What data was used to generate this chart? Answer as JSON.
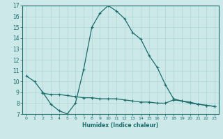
{
  "xlabel": "Humidex (Indice chaleur)",
  "ylabel": "",
  "background_color": "#cce8e8",
  "grid_color": "#aed4d4",
  "line_color": "#1a6b6b",
  "xlim": [
    -0.5,
    23.5
  ],
  "ylim": [
    7,
    17
  ],
  "xticks": [
    0,
    1,
    2,
    3,
    4,
    5,
    6,
    7,
    8,
    9,
    10,
    11,
    12,
    13,
    14,
    15,
    16,
    17,
    18,
    19,
    20,
    21,
    22,
    23
  ],
  "yticks": [
    7,
    8,
    9,
    10,
    11,
    12,
    13,
    14,
    15,
    16,
    17
  ],
  "series1_x": [
    0,
    1,
    2,
    3,
    4,
    5,
    6,
    7,
    8,
    9,
    10,
    11,
    12,
    13,
    14,
    15,
    16,
    17,
    18,
    19,
    20,
    21,
    22,
    23
  ],
  "series1_y": [
    10.5,
    10.0,
    9.0,
    7.9,
    7.3,
    7.0,
    8.0,
    11.1,
    15.0,
    16.3,
    17.0,
    16.5,
    15.8,
    14.5,
    13.9,
    12.4,
    11.3,
    9.7,
    8.4,
    8.2,
    8.0,
    7.9,
    7.8,
    7.7
  ],
  "series2_x": [
    2,
    3,
    4,
    5,
    6,
    7,
    8,
    9,
    10,
    11,
    12,
    13,
    14,
    15,
    16,
    17,
    18,
    19,
    20,
    21,
    22,
    23
  ],
  "series2_y": [
    8.9,
    8.8,
    8.8,
    8.7,
    8.6,
    8.5,
    8.5,
    8.4,
    8.4,
    8.4,
    8.3,
    8.2,
    8.1,
    8.1,
    8.0,
    8.0,
    8.3,
    8.2,
    8.1,
    7.9,
    7.8,
    7.7
  ]
}
